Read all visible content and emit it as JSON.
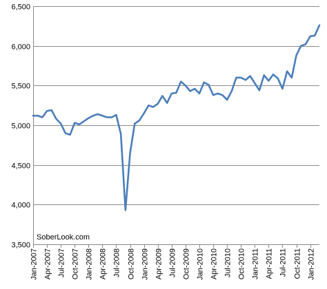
{
  "watermark": "SoberLook.com",
  "chart_data": {
    "type": "line",
    "title": "",
    "xlabel": "",
    "ylabel": "",
    "ylim": [
      3500,
      6500
    ],
    "y_ticks": [
      "3,500",
      "4,000",
      "4,500",
      "5,000",
      "5,500",
      "6,000",
      "6,500"
    ],
    "y_tick_values": [
      3500,
      4000,
      4500,
      5000,
      5500,
      6000,
      6500
    ],
    "grid": "horizontal",
    "legend": "none",
    "x_tick_labels": [
      "Jan-2007",
      "Apr-2007",
      "Jul-2007",
      "Oct-2007",
      "Jan-2008",
      "Apr-2008",
      "Jul-2008",
      "Oct-2008",
      "Jan-2009",
      "Apr-2009",
      "Jul-2009",
      "Oct-2009",
      "Jan-2010",
      "Apr-2010",
      "Jul-2010",
      "Oct-2010",
      "Jan-2011",
      "Apr-2011",
      "Jul-2011",
      "Oct-2011",
      "Jan-2012"
    ],
    "x_tick_every": 3,
    "line_color": "#4a7ebb",
    "series": [
      {
        "values": [
          5120,
          5120,
          5100,
          5180,
          5190,
          5080,
          5020,
          4900,
          4880,
          5030,
          5010,
          5050,
          5090,
          5120,
          5140,
          5120,
          5100,
          5100,
          5130,
          4890,
          3930,
          4650,
          5020,
          5060,
          5150,
          5250,
          5230,
          5270,
          5370,
          5280,
          5400,
          5410,
          5550,
          5500,
          5430,
          5460,
          5400,
          5540,
          5510,
          5380,
          5400,
          5380,
          5320,
          5430,
          5600,
          5600,
          5570,
          5620,
          5530,
          5440,
          5630,
          5560,
          5640,
          5590,
          5460,
          5680,
          5600,
          5880,
          6000,
          6020,
          6120,
          6130,
          6260
        ]
      }
    ]
  }
}
